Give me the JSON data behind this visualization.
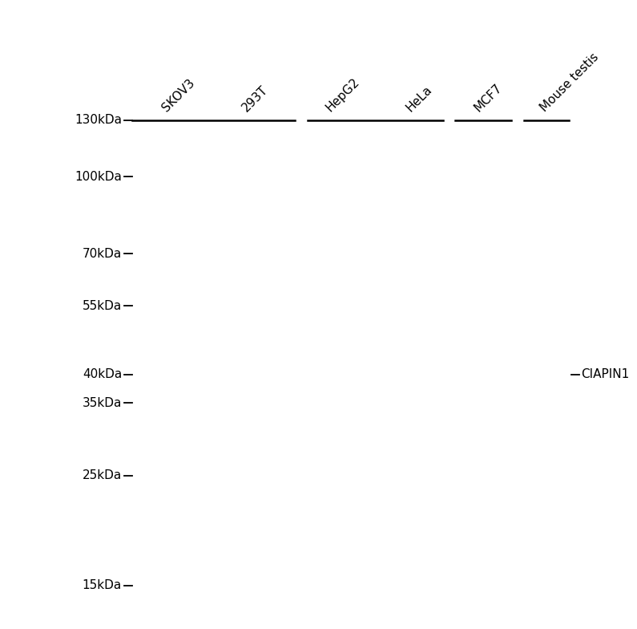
{
  "background_color": "#ffffff",
  "mw_labels": [
    "130kDa",
    "100kDa",
    "70kDa",
    "55kDa",
    "40kDa",
    "35kDa",
    "25kDa",
    "15kDa"
  ],
  "mw_values": [
    130,
    100,
    70,
    55,
    40,
    35,
    25,
    15
  ],
  "sample_labels": [
    "SKOV3",
    "293T",
    "HepG2",
    "HeLa",
    "MCF7",
    "Mouse testis"
  ],
  "annotation_label": "CIAPIN1",
  "gel_gray": 0.74,
  "title_fontsize": 11,
  "label_fontsize": 11,
  "mw_fontsize": 11
}
